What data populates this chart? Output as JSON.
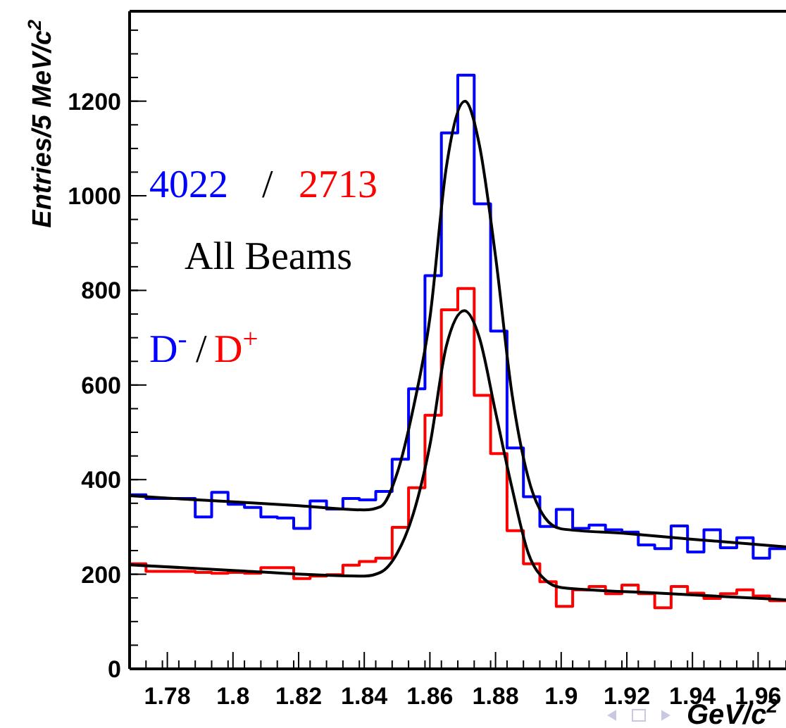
{
  "chart_data": {
    "type": "histogram",
    "xlabel": "GeV/c$^{2}$",
    "ylabel": "Entries/5 MeV/c$^{2}$",
    "bins": [
      1.7685,
      1.7735,
      1.7785,
      1.7835,
      1.7885,
      1.7935,
      1.7985,
      1.8035,
      1.8085,
      1.8135,
      1.8185,
      1.8235,
      1.8285,
      1.8335,
      1.8385,
      1.8435,
      1.8485,
      1.8535,
      1.8585,
      1.8635,
      1.8685,
      1.8735,
      1.8785,
      1.8835,
      1.8885,
      1.8935,
      1.8985,
      1.9035,
      1.9085,
      1.9135,
      1.9185,
      1.9235,
      1.9285,
      1.9335,
      1.9385,
      1.9435,
      1.9485,
      1.9535,
      1.9585,
      1.9635,
      1.9685
    ],
    "series": [
      {
        "name": "D$^{-}$",
        "color": "#0000ff",
        "values": [
          368,
          360,
          360,
          360,
          321,
          373,
          348,
          341,
          321,
          319,
          297,
          355,
          338,
          360,
          357,
          375,
          443,
          592,
          831,
          1133,
          1255,
          983,
          714,
          467,
          364,
          301,
          337,
          297,
          304,
          294,
          289,
          262,
          254,
          302,
          247,
          294,
          256,
          277,
          234,
          254
        ]
      },
      {
        "name": "D$^{+}$",
        "color": "#ff0000",
        "values": [
          222,
          206,
          206,
          206,
          204,
          202,
          204,
          202,
          214,
          214,
          191,
          196,
          199,
          219,
          227,
          234,
          299,
          383,
          536,
          759,
          804,
          578,
          455,
          292,
          222,
          184,
          132,
          167,
          174,
          159,
          177,
          159,
          129,
          174,
          160,
          149,
          159,
          167,
          154,
          144
        ]
      },
      {
        "type": "line",
        "color": "#000000",
        "x": [
          1.7685,
          1.78,
          1.8,
          1.82,
          1.84,
          1.845,
          1.85,
          1.855,
          1.86,
          1.865,
          1.8707,
          1.875,
          1.88,
          1.885,
          1.89,
          1.895,
          1.9,
          1.92,
          1.94,
          1.9685
        ],
        "values": [
          366,
          361,
          353,
          345,
          336,
          343,
          413,
          553,
          742,
          1060,
          1200,
          1110,
          872,
          582,
          403,
          320,
          296,
          286,
          274,
          258
        ]
      },
      {
        "type": "line",
        "color": "#000000",
        "x": [
          1.7685,
          1.8,
          1.84,
          1.845,
          1.85,
          1.855,
          1.86,
          1.865,
          1.8705,
          1.875,
          1.88,
          1.885,
          1.89,
          1.895,
          1.9,
          1.93,
          1.9685
        ],
        "values": [
          220,
          208,
          196,
          204,
          244,
          329,
          473,
          682,
          757,
          702,
          543,
          383,
          244,
          189,
          172,
          160,
          146
        ]
      }
    ],
    "xlim": [
      1.7685,
      1.9685
    ],
    "xticks": [
      1.78,
      1.8,
      1.82,
      1.84,
      1.86,
      1.88,
      1.9,
      1.92,
      1.94,
      1.96
    ],
    "ylim": [
      0,
      1390
    ],
    "yticks": [
      0,
      200,
      400,
      600,
      800,
      1000,
      1200
    ],
    "annotations": [
      "4022",
      "/",
      "2713",
      "All Beams",
      "/"
    ],
    "legend": "left",
    "grid": false
  }
}
